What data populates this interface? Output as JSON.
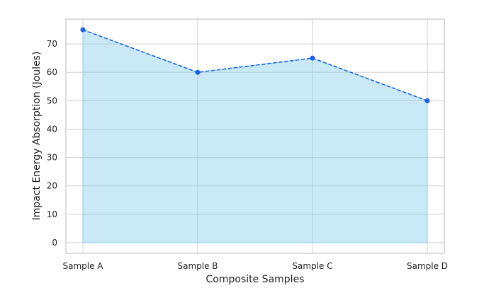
{
  "chart_data": {
    "type": "area",
    "title": "",
    "xlabel": "Composite Samples",
    "ylabel": "Impact Energy Absorption (Joules)",
    "categories": [
      "Sample A",
      "Sample B",
      "Sample C",
      "Sample D"
    ],
    "series": [
      {
        "values": [
          75,
          60,
          65,
          50
        ]
      }
    ],
    "ylim": [
      -3.75,
      78.75
    ],
    "yticks": [
      0,
      10,
      20,
      30,
      40,
      50,
      60,
      70
    ],
    "grid": true,
    "legend": "none",
    "colors": {
      "line": "#1f5fe0",
      "marker": "#1a5fe6",
      "fill": "#87ceeb",
      "grid": "#d0d0d0",
      "frame": "#bbbbbb"
    }
  }
}
